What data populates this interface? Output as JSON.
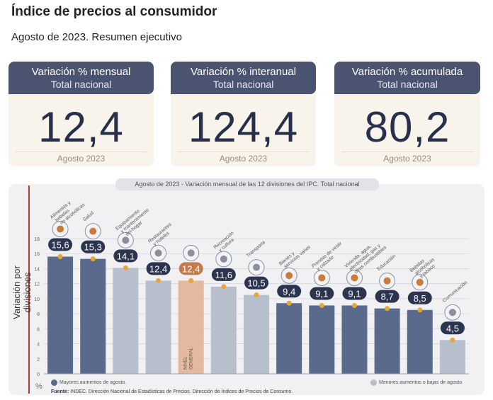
{
  "header": {
    "title": "Índice de precios al consumidor",
    "subtitle": "Agosto de 2023. Resumen ejecutivo"
  },
  "cards": [
    {
      "title": "Variación % mensual",
      "scope": "Total nacional",
      "value": "12,4",
      "period": "Agosto 2023"
    },
    {
      "title": "Variación % interanual",
      "scope": "Total nacional",
      "value": "124,4",
      "period": "Agosto 2023"
    },
    {
      "title": "Variación % acumulada",
      "scope": "Total nacional",
      "value": "80,2",
      "period": "Agosto 2023"
    }
  ],
  "chart_header": {
    "period": "Agosto de 2023",
    "text": " - Variación mensual de las 12 divisiones del IPC. Total nacional"
  },
  "legend": {
    "dark": "Mayores aumentos de agosto.",
    "light": "Menores aumentos o bajas de agosto."
  },
  "source": {
    "label": "Fuente:",
    "text": " INDEC. Dirección Nacional de Estadísticas de Precios. Dirección de Índices de Precios de Consumo."
  },
  "colors": {
    "dark": "#5a6a8c",
    "light": "#b8bfcc",
    "general": "#e3b9a0",
    "marker": "#e8a735",
    "card_header": "#4a5370"
  },
  "chart_data": {
    "type": "bar",
    "ylabel": "Variación por divisiones",
    "yunit": "%",
    "ylim": [
      0,
      18
    ],
    "yticks": [
      0,
      2,
      4,
      6,
      8,
      10,
      12,
      14,
      16,
      18
    ],
    "categories": [
      [
        "Alimentos y",
        "bebidas",
        "no alcohólicas"
      ],
      [
        "Salud"
      ],
      [
        "Equipamiento",
        "y mantenimiento",
        "del hogar"
      ],
      [
        "Restaurantes",
        "y hoteles"
      ],
      [
        "NIVEL",
        "GENERAL"
      ],
      [
        "Recreación",
        "y cultura"
      ],
      [
        "Transporte"
      ],
      [
        "Bienes y",
        "servicios varios"
      ],
      [
        "Prendas de vestir",
        "y calzado"
      ],
      [
        "Vivienda, agua,",
        "electricidad, gas y",
        "otros combustibles"
      ],
      [
        "Educación"
      ],
      [
        "Bebidas",
        "alcohólicas",
        "y tabaco"
      ],
      [
        "Comunicación"
      ]
    ],
    "values": [
      15.6,
      15.3,
      14.1,
      12.4,
      12.4,
      11.6,
      10.5,
      9.4,
      9.1,
      9.1,
      8.7,
      8.5,
      4.5
    ],
    "value_labels": [
      "15,6",
      "15,3",
      "14,1",
      "12,4",
      "12,4",
      "11,6",
      "10,5",
      "9,4",
      "9,1",
      "9,1",
      "8,7",
      "8,5",
      "4,5"
    ],
    "groups": [
      "dark",
      "dark",
      "light",
      "light",
      "general",
      "light",
      "light",
      "dark",
      "dark",
      "dark",
      "dark",
      "dark",
      "light"
    ],
    "icons": [
      "food-icon",
      "health-icon",
      "household-icon",
      "restaurant-icon",
      "basket-icon",
      "recreation-icon",
      "transport-icon",
      "misc-goods-icon",
      "clothing-icon",
      "housing-icon",
      "education-icon",
      "beverages-icon",
      "communication-icon"
    ]
  }
}
